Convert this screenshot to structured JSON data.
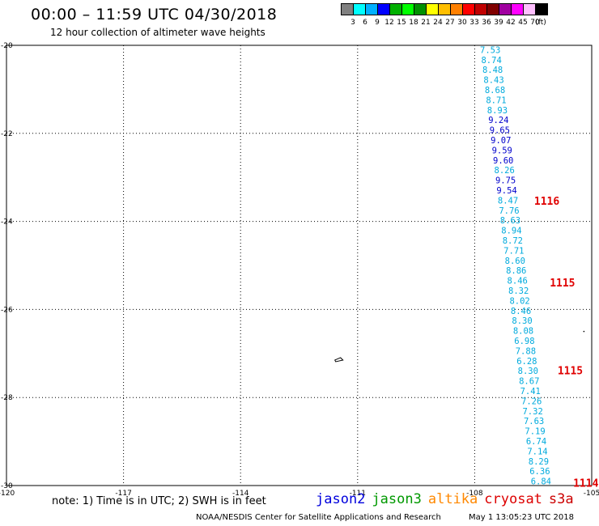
{
  "header": {
    "title": "00:00 – 11:59 UTC 04/30/2018",
    "subtitle": "12 hour collection of altimeter wave heights"
  },
  "legend": {
    "colors": [
      "#808080",
      "#00ffff",
      "#00b0ff",
      "#0000ff",
      "#00b000",
      "#00ff00",
      "#009000",
      "#ffff00",
      "#ffbf00",
      "#ff8000",
      "#ff0000",
      "#c00000",
      "#800000",
      "#a000a0",
      "#ff00ff",
      "#ffc0ff",
      "#000000"
    ],
    "labels": [
      "3",
      "6",
      "9",
      "12",
      "15",
      "18",
      "21",
      "24",
      "27",
      "30",
      "33",
      "36",
      "39",
      "42",
      "45",
      "70",
      "(ft)"
    ]
  },
  "map": {
    "x_ticks": [
      "-120",
      "-117",
      "-114",
      "-111",
      "-108",
      "-105"
    ],
    "y_ticks": [
      "-20",
      "-22",
      "-24",
      "-26",
      "-28",
      "-30"
    ],
    "x_range": [
      -120,
      -105
    ],
    "y_range": [
      -30,
      -20
    ],
    "grid": "dotted"
  },
  "track": {
    "heights": [
      "7.53",
      "8.74",
      "8.48",
      "8.43",
      "8.68",
      "8.71",
      "8.93",
      "9.24",
      "9.65",
      "9.07",
      "9.59",
      "9.60",
      "8.26",
      "9.75",
      "9.54",
      "8.47",
      "7.76",
      "8.63",
      "8.94",
      "8.72",
      "7.71",
      "8.60",
      "8.86",
      "8.46",
      "8.32",
      "8.02",
      "8.46",
      "8.30",
      "8.08",
      "6.98",
      "7.88",
      "6.28",
      "8.30",
      "8.67",
      "7.41",
      "7.26",
      "7.32",
      "7.63",
      "7.19",
      "6.74",
      "7.14",
      "8.29",
      "6.36",
      "6.84"
    ],
    "colors": [
      "#00aadd",
      "#00aadd",
      "#00aadd",
      "#00aadd",
      "#00aadd",
      "#00aadd",
      "#00aadd",
      "#0000cc",
      "#0000cc",
      "#0000cc",
      "#0000cc",
      "#0000cc",
      "#00aadd",
      "#0000cc",
      "#0000cc",
      "#00aadd",
      "#00aadd",
      "#00aadd",
      "#00aadd",
      "#00aadd",
      "#00aadd",
      "#00aadd",
      "#00aadd",
      "#00aadd",
      "#00aadd",
      "#00aadd",
      "#00aadd",
      "#00aadd",
      "#00aadd",
      "#00aadd",
      "#00aadd",
      "#00aadd",
      "#00aadd",
      "#00aadd",
      "#00aadd",
      "#00aadd",
      "#00aadd",
      "#00aadd",
      "#00aadd",
      "#00aadd",
      "#00aadd",
      "#00aadd",
      "#00aadd",
      "#00aadd"
    ],
    "pass_labels": [
      {
        "text": "1116",
        "lat": -23.55,
        "lon": -106.15
      },
      {
        "text": "1115",
        "lat": -25.4,
        "lon": -105.75
      },
      {
        "text": "1115",
        "lat": -27.4,
        "lon": -105.55
      },
      {
        "text": "1114",
        "lat": -29.95,
        "lon": -105.15
      }
    ]
  },
  "footer": {
    "note": "note: 1) Time is in UTC; 2) SWH is in feet",
    "satellites": [
      {
        "name": "jason2",
        "color": "#0000dd"
      },
      {
        "name": "jason3",
        "color": "#009900"
      },
      {
        "name": "altika",
        "color": "#ff8800"
      },
      {
        "name": "cryosat",
        "color": "#dd0000"
      },
      {
        "name": "s3a",
        "color": "#cc0000"
      }
    ],
    "credit": "NOAA/NESDIS Center for Satellite Applications and Research",
    "timestamp": "May  1 13:05:23 UTC 2018"
  }
}
